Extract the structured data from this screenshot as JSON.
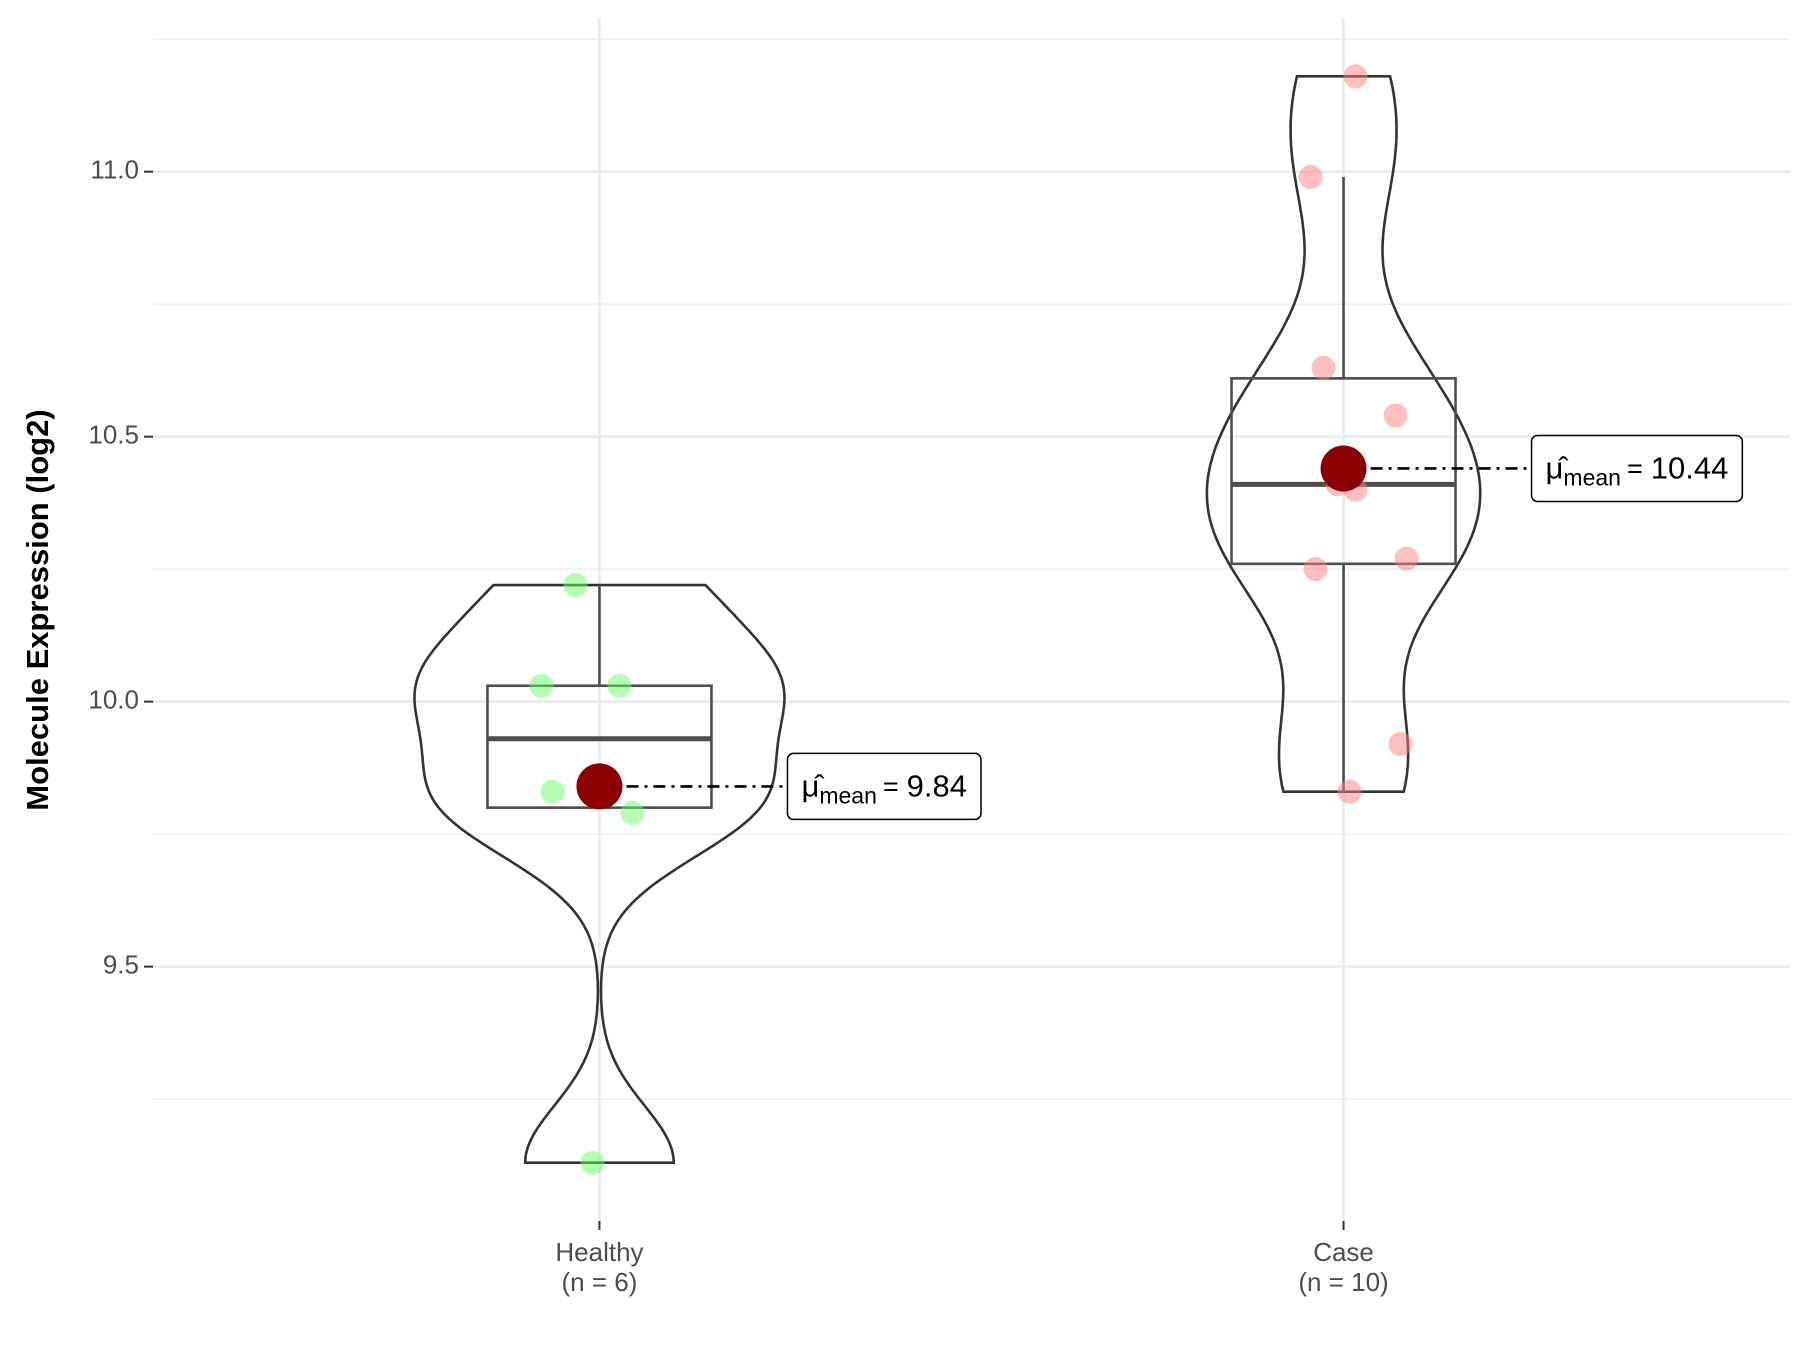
{
  "chart_data": {
    "type": "violin",
    "y_label": "Molecule Expression (log2)",
    "ylim": [
      9.02,
      11.29
    ],
    "yticks": [
      9.5,
      {
        "value": 10,
        "label": "10.0"
      },
      10.5,
      {
        "value": 11,
        "label": "11.0"
      }
    ],
    "grid": true,
    "mean_symbol": "μ̂",
    "mean_subscript": "mean",
    "mean_equals": "=",
    "mean_color": "#8b0000",
    "groups": [
      {
        "name": "Healthy",
        "n_label": "(n = 6)",
        "color": "#66ff66",
        "values": [
          10.22,
          10.03,
          10.03,
          9.83,
          9.79,
          9.13
        ],
        "q1": 9.8,
        "median": 9.93,
        "q3": 10.03,
        "whisker_low": 9.8,
        "whisker_high": 10.22,
        "mean": 9.84
      },
      {
        "name": "Case",
        "n_label": "(n = 10)",
        "color": "#ff7f7f",
        "values": [
          11.18,
          10.99,
          10.63,
          10.54,
          10.41,
          10.4,
          10.27,
          10.25,
          9.92,
          9.83
        ],
        "q1": 10.26,
        "median": 10.41,
        "q3": 10.61,
        "whisker_low": 9.83,
        "whisker_high": 10.99,
        "mean": 10.44
      }
    ]
  }
}
